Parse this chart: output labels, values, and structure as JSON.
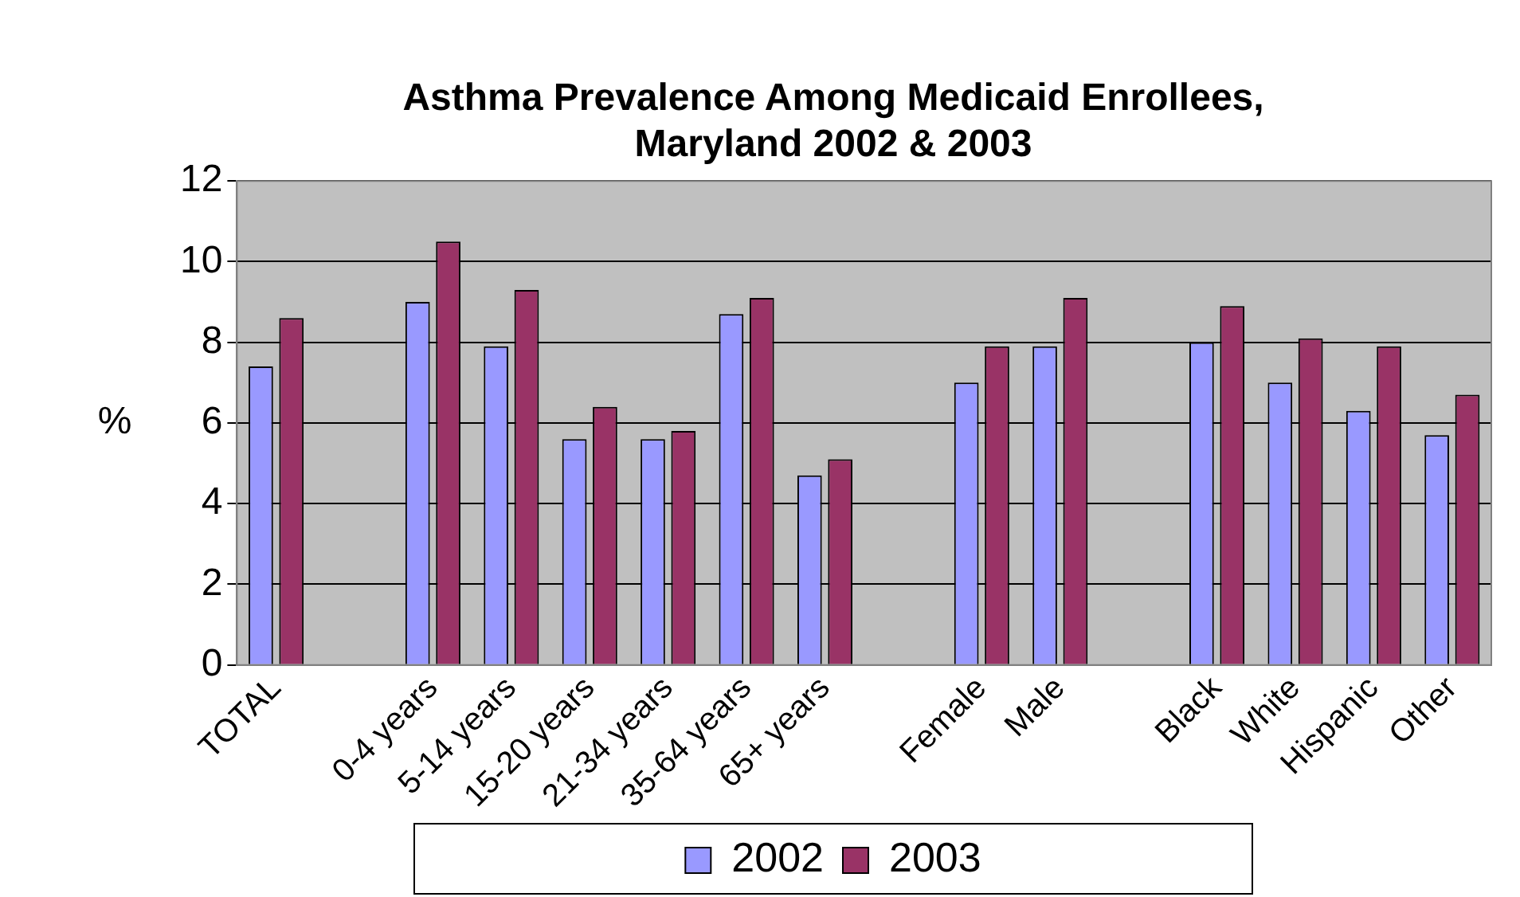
{
  "chart_data": {
    "type": "bar",
    "title": [
      "Asthma Prevalence Among Medicaid Enrollees,",
      "Maryland 2002 & 2003"
    ],
    "ylabel": "%",
    "categories": [
      "TOTAL",
      null,
      "0-4 years",
      "5-14 years",
      "15-20 years",
      "21-34 years",
      "35-64 years",
      "65+ years",
      null,
      "Female",
      "Male",
      null,
      "Black",
      "White",
      "Hispanic",
      "Other"
    ],
    "series": [
      {
        "name": "2002",
        "color": "#9999ff",
        "values": [
          7.4,
          null,
          9.0,
          7.9,
          5.6,
          5.6,
          8.7,
          4.7,
          null,
          7.0,
          7.9,
          null,
          8.0,
          7.0,
          6.3,
          5.7
        ]
      },
      {
        "name": "2003",
        "color": "#993366",
        "values": [
          8.6,
          null,
          10.5,
          9.3,
          6.4,
          5.8,
          9.1,
          5.1,
          null,
          7.9,
          9.1,
          null,
          8.9,
          8.1,
          7.9,
          6.7
        ]
      }
    ],
    "ylim": [
      0,
      12
    ],
    "yticks": [
      0,
      2,
      4,
      6,
      8,
      10,
      12
    ],
    "grid": "y",
    "legend": "bottom"
  }
}
